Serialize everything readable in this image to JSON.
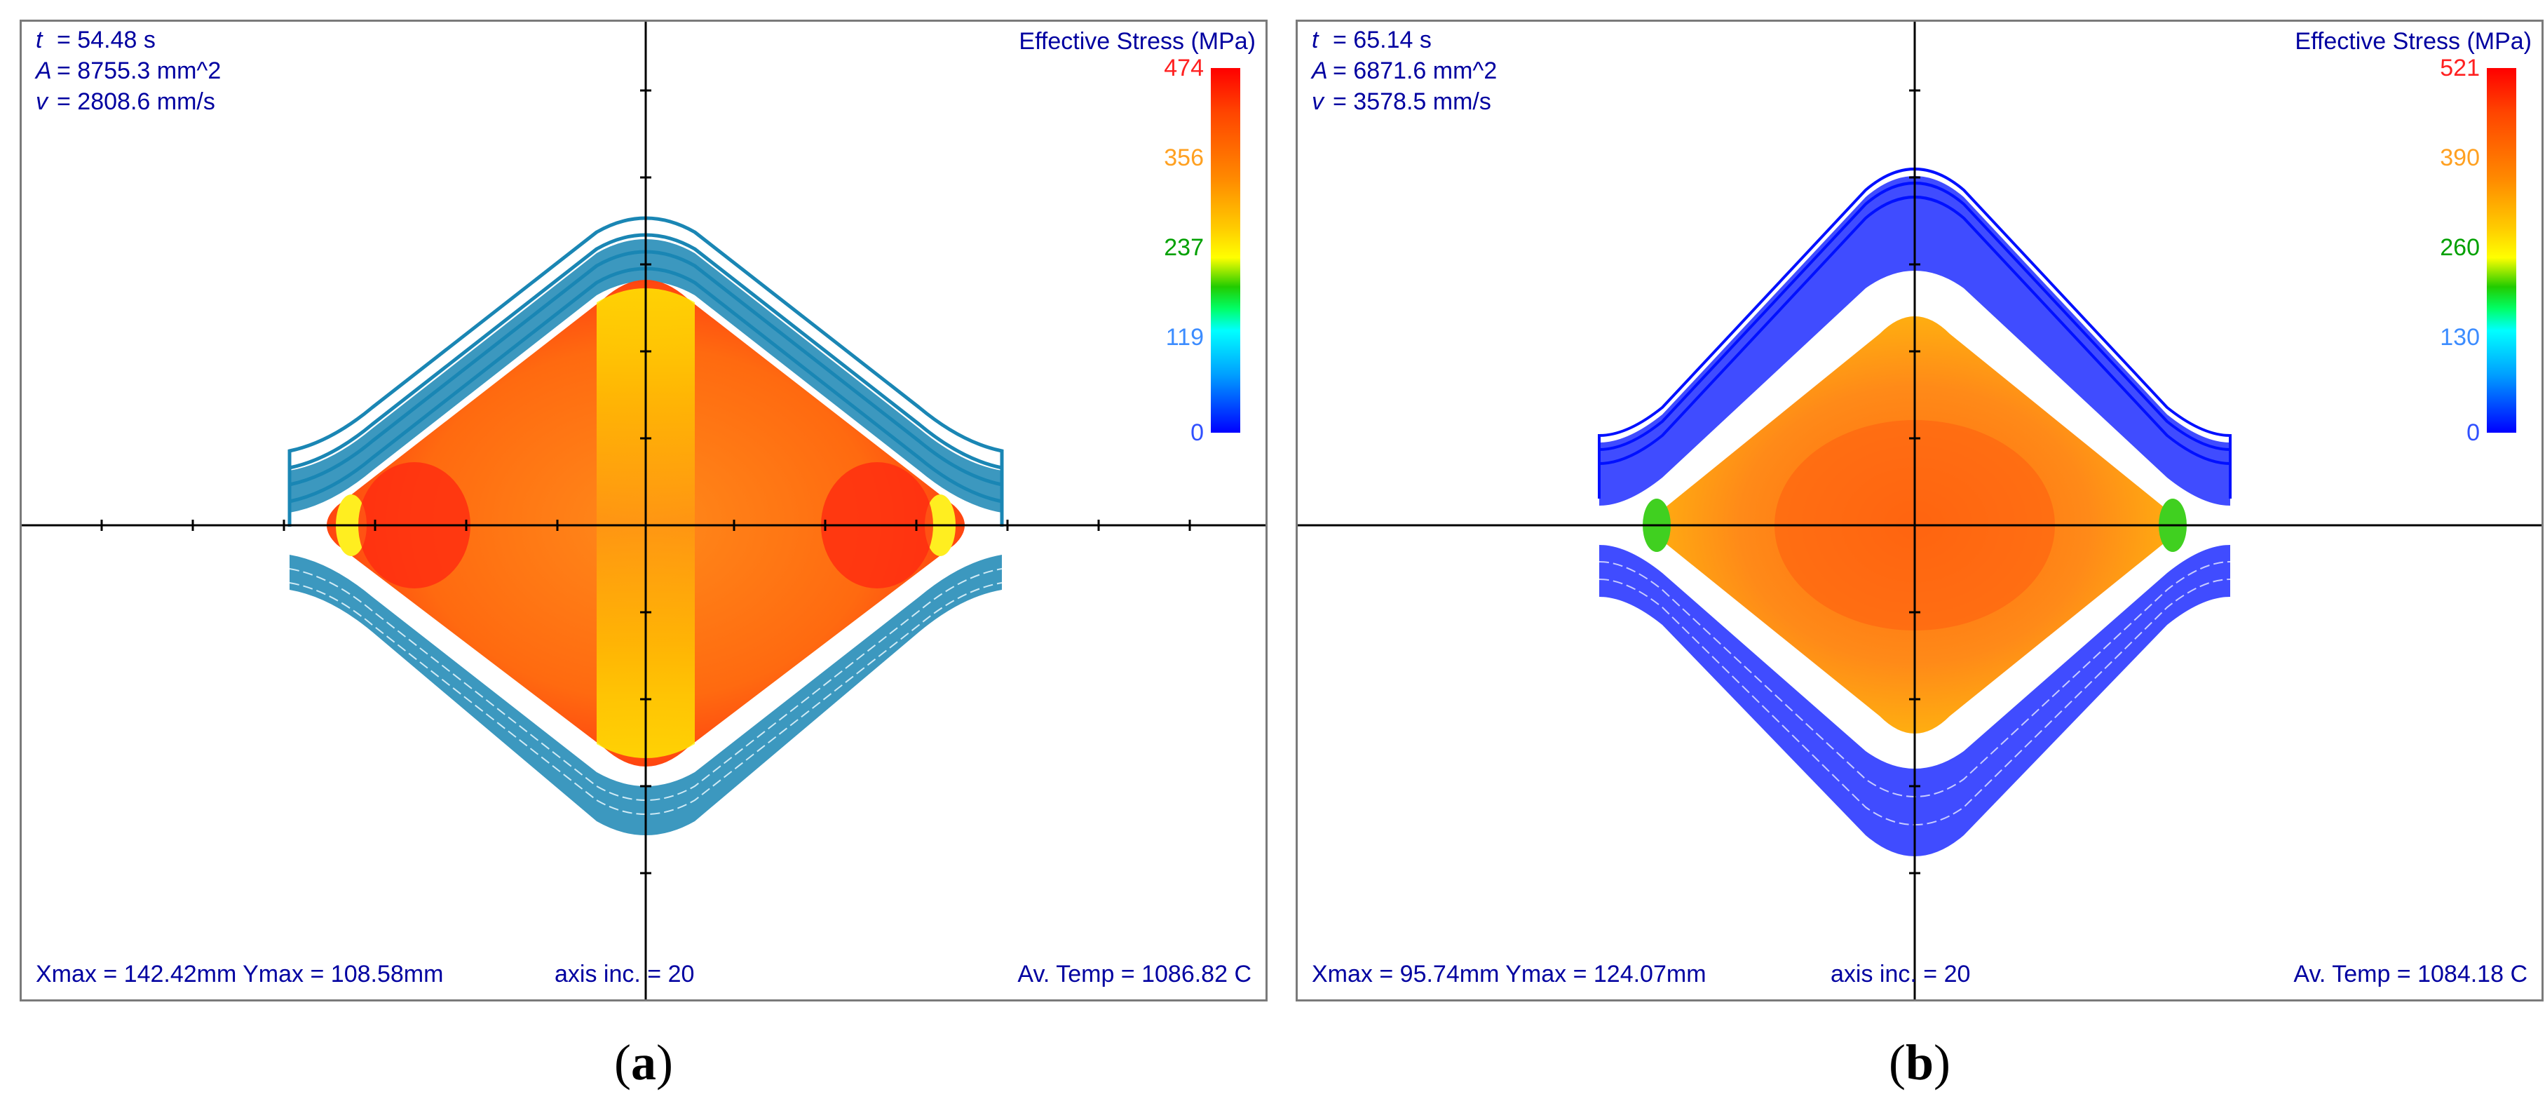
{
  "panels": [
    {
      "caption": "a",
      "info": {
        "t": "= 54.48 s",
        "A": "= 8755.3 mm^2",
        "v": "= 2808.6 mm/s",
        "t_sym": "t",
        "A_sym": "A",
        "v_sym": "v"
      },
      "legend": {
        "title": "Effective Stress (MPa)",
        "labels": [
          "474",
          "356",
          "237",
          "119",
          "0"
        ],
        "label_colors": [
          "#ff2020",
          "#ffa020",
          "#00a000",
          "#3c8cff",
          "#3050ff"
        ]
      },
      "footer": {
        "max": "Xmax = 142.42mm  Ymax = 108.58mm",
        "inc": "axis inc. = 20",
        "temp": "Av. Temp = 1086.82 C"
      },
      "colors": {
        "rolls": "#1a86b4",
        "roll_light": "#cfeaf5",
        "core": "#ff6a10",
        "edge": "#ff2a10",
        "glow": "#ffff00"
      }
    },
    {
      "caption": "b",
      "info": {
        "t": "= 65.14 s",
        "A": "= 6871.6 mm^2",
        "v": "= 3578.5 mm/s",
        "t_sym": "t",
        "A_sym": "A",
        "v_sym": "v"
      },
      "legend": {
        "title": "Effective Stress (MPa)",
        "labels": [
          "521",
          "390",
          "260",
          "130",
          "0"
        ],
        "label_colors": [
          "#ff2020",
          "#ffa020",
          "#00a000",
          "#3c8cff",
          "#3050ff"
        ]
      },
      "footer": {
        "max": "Xmax = 95.74mm  Ymax = 124.07mm",
        "inc": "axis inc. = 20",
        "temp": "Av. Temp = 1084.18 C"
      },
      "colors": {
        "rolls": "#0010ff",
        "roll_light": "#c8ccff",
        "core": "#ff7a10",
        "edge": "#ffb010",
        "glow": "#ffee20"
      }
    }
  ]
}
